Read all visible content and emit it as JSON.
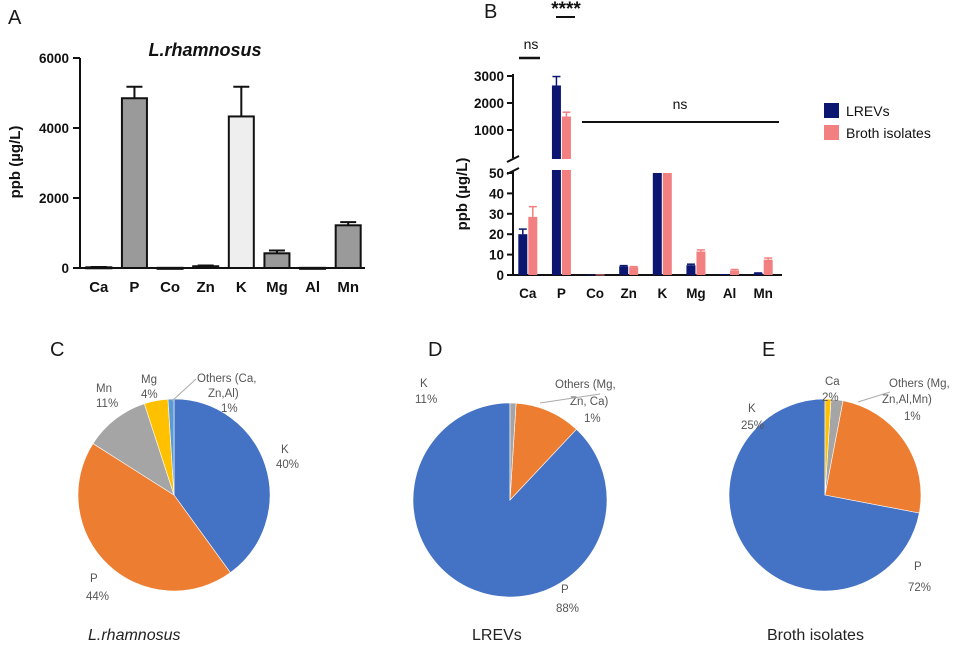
{
  "panels": {
    "A": "A",
    "B": "B",
    "C": "C",
    "D": "D",
    "E": "E"
  },
  "chart_data": [
    {
      "id": "A",
      "type": "bar",
      "title": "L.rhamnosus",
      "ylabel": "ppb (µg/L)",
      "xlabel": "",
      "categories": [
        "Ca",
        "P",
        "Co",
        "Zn",
        "K",
        "Mg",
        "Al",
        "Mn"
      ],
      "values": [
        20,
        4850,
        5,
        50,
        4330,
        420,
        5,
        1220
      ],
      "errors": [
        10,
        330,
        0,
        20,
        850,
        80,
        0,
        90
      ],
      "colors": [
        "#9a9a9a",
        "#9a9a9a",
        "#9a9a9a",
        "#9a9a9a",
        "#eeeeee",
        "#9a9a9a",
        "#9a9a9a",
        "#9a9a9a"
      ],
      "ylim": [
        0,
        6000
      ],
      "yticks": [
        "0",
        "2000",
        "4000",
        "6000"
      ],
      "grid": false
    },
    {
      "id": "B",
      "type": "bar",
      "ylabel": "ppb (µg/L)",
      "categories": [
        "Ca",
        "P",
        "Co",
        "Zn",
        "K",
        "Mg",
        "Al",
        "Mn"
      ],
      "series": [
        {
          "name": "LREVs",
          "color": "#0a1670",
          "values": [
            20,
            2650,
            0.3,
            4.2,
            50,
            4.8,
            0.5,
            0.8
          ],
          "errors": [
            2.5,
            330,
            0,
            0.4,
            0,
            0.5,
            0,
            0.2
          ]
        },
        {
          "name": "Broth isolates",
          "color": "#f28080",
          "values": [
            28.5,
            1500,
            0.3,
            3.8,
            50,
            11.5,
            2.2,
            7.5
          ],
          "errors": [
            5,
            160,
            0,
            0.3,
            0,
            0.8,
            0.5,
            0.8
          ]
        }
      ],
      "y_axis_broken": true,
      "lower_ylim": [
        0,
        50
      ],
      "lower_yticks": [
        "0",
        "10",
        "20",
        "30",
        "40",
        "50"
      ],
      "upper_ylim": [
        0,
        3000
      ],
      "upper_yticks": [
        "1000",
        "2000",
        "3000"
      ],
      "legend_position": "right",
      "significance": [
        {
          "label": "ns",
          "between": [
            "Ca LREVs",
            "Ca Broth isolates"
          ]
        },
        {
          "label": "****",
          "between": [
            "P LREVs",
            "P Broth isolates"
          ]
        },
        {
          "label": "ns",
          "between": [
            "Co",
            "Mn"
          ]
        }
      ]
    },
    {
      "id": "C",
      "type": "pie",
      "title": "L.rhamnosus",
      "slices": [
        {
          "label": "K",
          "value": 40,
          "pct": "40%",
          "color": "#4472c4"
        },
        {
          "label": "P",
          "value": 44,
          "pct": "44%",
          "color": "#ed7d31"
        },
        {
          "label": "Mn",
          "value": 11,
          "pct": "11%",
          "color": "#a5a5a5"
        },
        {
          "label": "Mg",
          "value": 4,
          "pct": "4%",
          "color": "#ffc000"
        },
        {
          "label": "Others (Ca, Zn,Al)",
          "value": 1,
          "pct": "1%",
          "color": "#5b9bd5"
        }
      ]
    },
    {
      "id": "D",
      "type": "pie",
      "title": "LREVs",
      "slices": [
        {
          "label": "P",
          "value": 88,
          "pct": "88%",
          "color": "#4472c4"
        },
        {
          "label": "K",
          "value": 11,
          "pct": "11%",
          "color": "#ed7d31"
        },
        {
          "label": "Others (Mg, Zn, Ca)",
          "value": 1,
          "pct": "1%",
          "color": "#a5a5a5"
        }
      ]
    },
    {
      "id": "E",
      "type": "pie",
      "title": "Broth isolates",
      "slices": [
        {
          "label": "P",
          "value": 72,
          "pct": "72%",
          "color": "#4472c4"
        },
        {
          "label": "K",
          "value": 25,
          "pct": "25%",
          "color": "#ed7d31"
        },
        {
          "label": "Ca",
          "value": 2,
          "pct": "2%",
          "color": "#a5a5a5"
        },
        {
          "label": "Others (Mg, Zn,Al,Mn)",
          "value": 1,
          "pct": "1%",
          "color": "#ffc000"
        }
      ]
    }
  ]
}
